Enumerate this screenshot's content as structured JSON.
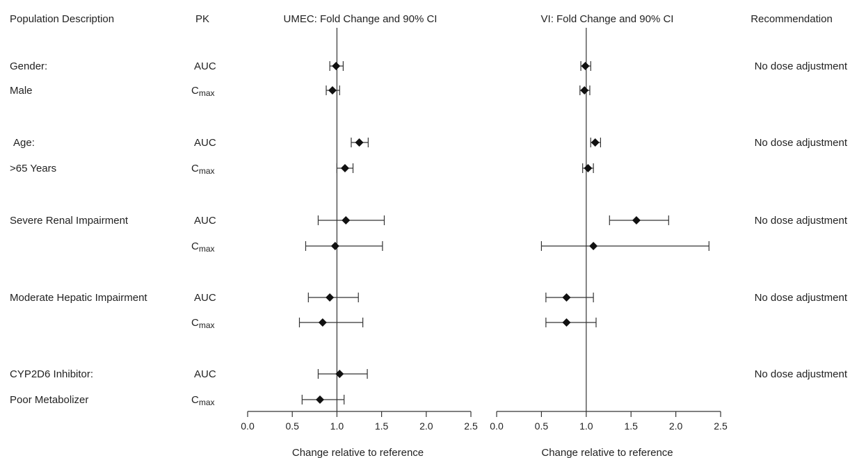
{
  "headers": {
    "population": "Population Description",
    "pk": "PK",
    "umec": "UMEC: Fold Change and 90% CI",
    "vi": "VI: Fold Change and 90% CI",
    "recommendation": "Recommendation"
  },
  "groups": [
    {
      "line1": "Gender:",
      "line2": "Male",
      "recommendation": "No dose adjustment"
    },
    {
      "line1": "Age:",
      "line2": ">65  Years",
      "recommendation": "No dose adjustment"
    },
    {
      "line1": "Severe Renal Impairment",
      "line2": "",
      "recommendation": "No dose adjustment"
    },
    {
      "line1": "Moderate Hepatic Impairment",
      "line2": "",
      "recommendation": "No dose adjustment"
    },
    {
      "line1": "CYP2D6 Inhibitor:",
      "line2": "Poor Metabolizer",
      "recommendation": "No dose adjustment"
    }
  ],
  "pk_labels": {
    "auc": "AUC",
    "cmax_main": "C",
    "cmax_sub": "max"
  },
  "colors": {
    "marker": "#111111",
    "line": "#333333"
  },
  "chart_data": [
    {
      "type": "scatter",
      "title": "UMEC: Fold Change and 90% CI",
      "xlabel": "Change relative to reference",
      "xlim": [
        0.0,
        2.5
      ],
      "xticks": [
        "0.0",
        "0.5",
        "1.0",
        "1.5",
        "2.0",
        "2.5"
      ],
      "reference_line": 1.0,
      "points": [
        {
          "group": "Gender: Male",
          "pk": "AUC",
          "value": 0.99,
          "lower": 0.92,
          "upper": 1.07
        },
        {
          "group": "Gender: Male",
          "pk": "Cmax",
          "value": 0.95,
          "lower": 0.88,
          "upper": 1.03
        },
        {
          "group": "Age: >65 Years",
          "pk": "AUC",
          "value": 1.25,
          "lower": 1.16,
          "upper": 1.35
        },
        {
          "group": "Age: >65 Years",
          "pk": "Cmax",
          "value": 1.09,
          "lower": 1.0,
          "upper": 1.18
        },
        {
          "group": "Severe Renal Impairment",
          "pk": "AUC",
          "value": 1.1,
          "lower": 0.79,
          "upper": 1.53
        },
        {
          "group": "Severe Renal Impairment",
          "pk": "Cmax",
          "value": 0.98,
          "lower": 0.65,
          "upper": 1.51
        },
        {
          "group": "Moderate Hepatic Impairment",
          "pk": "AUC",
          "value": 0.92,
          "lower": 0.68,
          "upper": 1.24
        },
        {
          "group": "Moderate Hepatic Impairment",
          "pk": "Cmax",
          "value": 0.84,
          "lower": 0.58,
          "upper": 1.29
        },
        {
          "group": "CYP2D6 Inhibitor: Poor Metabolizer",
          "pk": "AUC",
          "value": 1.03,
          "lower": 0.79,
          "upper": 1.34
        },
        {
          "group": "CYP2D6 Inhibitor: Poor Metabolizer",
          "pk": "Cmax",
          "value": 0.81,
          "lower": 0.61,
          "upper": 1.08
        }
      ]
    },
    {
      "type": "scatter",
      "title": "VI: Fold Change and 90% CI",
      "xlabel": "Change relative to reference",
      "xlim": [
        0.0,
        2.5
      ],
      "xticks": [
        "0.0",
        "0.5",
        "1.0",
        "1.5",
        "2.0",
        "2.5"
      ],
      "reference_line": 1.0,
      "points": [
        {
          "group": "Gender: Male",
          "pk": "AUC",
          "value": 0.99,
          "lower": 0.94,
          "upper": 1.05
        },
        {
          "group": "Gender: Male",
          "pk": "Cmax",
          "value": 0.98,
          "lower": 0.93,
          "upper": 1.04
        },
        {
          "group": "Age: >65 Years",
          "pk": "AUC",
          "value": 1.1,
          "lower": 1.05,
          "upper": 1.16
        },
        {
          "group": "Age: >65 Years",
          "pk": "Cmax",
          "value": 1.02,
          "lower": 0.96,
          "upper": 1.08
        },
        {
          "group": "Severe Renal Impairment",
          "pk": "AUC",
          "value": 1.56,
          "lower": 1.26,
          "upper": 1.92
        },
        {
          "group": "Severe Renal Impairment",
          "pk": "Cmax",
          "value": 1.08,
          "lower": 0.5,
          "upper": 2.37
        },
        {
          "group": "Moderate Hepatic Impairment",
          "pk": "AUC",
          "value": 0.78,
          "lower": 0.55,
          "upper": 1.08
        },
        {
          "group": "Moderate Hepatic Impairment",
          "pk": "Cmax",
          "value": 0.78,
          "lower": 0.55,
          "upper": 1.11
        }
      ]
    }
  ]
}
